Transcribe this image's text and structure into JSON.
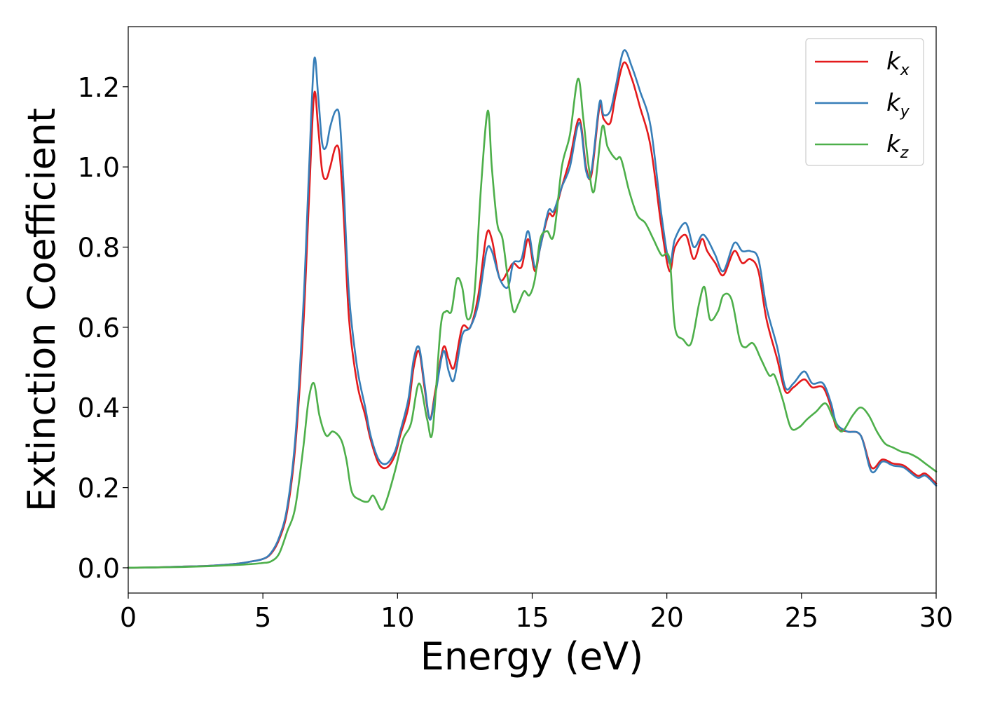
{
  "chart_data": {
    "type": "line",
    "xlabel": "Energy (eV)",
    "ylabel": "Extinction Coefficient",
    "xlim": [
      0,
      30
    ],
    "ylim": [
      -0.063,
      1.35
    ],
    "xticks": [
      0,
      5,
      10,
      15,
      20,
      25,
      30
    ],
    "xtick_labels": [
      "0",
      "5",
      "10",
      "15",
      "20",
      "25",
      "30"
    ],
    "yticks": [
      0.0,
      0.2,
      0.4,
      0.6,
      0.8,
      1.0,
      1.2
    ],
    "ytick_labels": [
      "0.0",
      "0.2",
      "0.4",
      "0.6",
      "0.8",
      "1.0",
      "1.2"
    ],
    "grid": false,
    "legend_position": "top-right",
    "series": [
      {
        "name": "k_x",
        "legend_base": "k",
        "legend_sub": "x",
        "color": "#e41a1c",
        "x": [
          0,
          1,
          2,
          3,
          4,
          4.5,
          5,
          5.3,
          5.6,
          5.9,
          6.2,
          6.5,
          6.7,
          6.9,
          7.05,
          7.2,
          7.35,
          7.5,
          7.7,
          7.85,
          8.0,
          8.2,
          8.5,
          8.8,
          9.0,
          9.3,
          9.6,
          9.9,
          10.1,
          10.4,
          10.6,
          10.8,
          11.0,
          11.2,
          11.4,
          11.7,
          11.9,
          12.1,
          12.4,
          12.7,
          13.0,
          13.3,
          13.5,
          13.8,
          14.1,
          14.3,
          14.6,
          14.85,
          15.1,
          15.3,
          15.6,
          15.8,
          16.1,
          16.4,
          16.75,
          17.0,
          17.2,
          17.5,
          17.65,
          17.9,
          18.1,
          18.4,
          18.7,
          19.0,
          19.4,
          19.8,
          20.1,
          20.3,
          20.7,
          21.0,
          21.3,
          21.5,
          21.8,
          22.1,
          22.5,
          22.8,
          23.1,
          23.4,
          23.7,
          24.1,
          24.4,
          24.7,
          25.1,
          25.4,
          25.8,
          26.1,
          26.3,
          26.7,
          27.2,
          27.6,
          28.0,
          28.4,
          28.8,
          29.3,
          29.6,
          30.0
        ],
        "y": [
          0.0,
          0.001,
          0.003,
          0.005,
          0.01,
          0.015,
          0.022,
          0.035,
          0.07,
          0.14,
          0.3,
          0.6,
          0.9,
          1.18,
          1.1,
          0.99,
          0.97,
          1.0,
          1.05,
          1.03,
          0.88,
          0.62,
          0.46,
          0.38,
          0.32,
          0.26,
          0.25,
          0.28,
          0.33,
          0.4,
          0.5,
          0.54,
          0.45,
          0.37,
          0.44,
          0.55,
          0.52,
          0.5,
          0.6,
          0.6,
          0.68,
          0.83,
          0.82,
          0.72,
          0.74,
          0.76,
          0.75,
          0.82,
          0.74,
          0.8,
          0.88,
          0.88,
          0.95,
          1.02,
          1.12,
          1.0,
          0.98,
          1.15,
          1.12,
          1.11,
          1.18,
          1.26,
          1.22,
          1.15,
          1.05,
          0.85,
          0.74,
          0.8,
          0.83,
          0.77,
          0.82,
          0.79,
          0.76,
          0.73,
          0.79,
          0.76,
          0.77,
          0.74,
          0.62,
          0.52,
          0.44,
          0.45,
          0.47,
          0.45,
          0.45,
          0.4,
          0.35,
          0.34,
          0.33,
          0.25,
          0.27,
          0.26,
          0.255,
          0.23,
          0.235,
          0.21
        ]
      },
      {
        "name": "k_y",
        "legend_base": "k",
        "legend_sub": "y",
        "color": "#377eb8",
        "x": [
          0,
          1,
          2,
          3,
          4,
          4.5,
          5,
          5.3,
          5.6,
          5.9,
          6.2,
          6.5,
          6.7,
          6.9,
          7.05,
          7.2,
          7.35,
          7.5,
          7.7,
          7.85,
          8.0,
          8.2,
          8.5,
          8.8,
          9.0,
          9.3,
          9.6,
          9.9,
          10.1,
          10.4,
          10.6,
          10.8,
          11.0,
          11.2,
          11.4,
          11.7,
          11.9,
          12.1,
          12.4,
          12.7,
          13.0,
          13.3,
          13.5,
          13.8,
          14.1,
          14.3,
          14.6,
          14.85,
          15.1,
          15.3,
          15.6,
          15.8,
          16.1,
          16.4,
          16.75,
          17.0,
          17.2,
          17.5,
          17.65,
          17.9,
          18.1,
          18.4,
          18.7,
          19.0,
          19.4,
          19.8,
          20.1,
          20.3,
          20.7,
          21.0,
          21.3,
          21.5,
          21.8,
          22.1,
          22.5,
          22.8,
          23.1,
          23.4,
          23.7,
          24.1,
          24.4,
          24.7,
          25.1,
          25.4,
          25.8,
          26.1,
          26.3,
          26.7,
          27.2,
          27.6,
          28.0,
          28.4,
          28.8,
          29.3,
          29.6,
          30.0
        ],
        "y": [
          0.0,
          0.001,
          0.003,
          0.005,
          0.01,
          0.015,
          0.022,
          0.037,
          0.075,
          0.15,
          0.32,
          0.65,
          0.97,
          1.265,
          1.18,
          1.06,
          1.05,
          1.1,
          1.14,
          1.12,
          0.95,
          0.68,
          0.5,
          0.4,
          0.33,
          0.27,
          0.26,
          0.29,
          0.34,
          0.42,
          0.52,
          0.55,
          0.46,
          0.37,
          0.43,
          0.54,
          0.49,
          0.47,
          0.58,
          0.6,
          0.66,
          0.79,
          0.79,
          0.72,
          0.7,
          0.76,
          0.77,
          0.84,
          0.75,
          0.8,
          0.89,
          0.89,
          0.95,
          1.0,
          1.11,
          0.99,
          0.99,
          1.16,
          1.13,
          1.14,
          1.2,
          1.29,
          1.25,
          1.19,
          1.1,
          0.88,
          0.76,
          0.82,
          0.86,
          0.8,
          0.83,
          0.82,
          0.78,
          0.74,
          0.81,
          0.79,
          0.79,
          0.77,
          0.65,
          0.55,
          0.45,
          0.46,
          0.49,
          0.46,
          0.46,
          0.41,
          0.36,
          0.34,
          0.33,
          0.24,
          0.265,
          0.255,
          0.25,
          0.225,
          0.23,
          0.205
        ]
      },
      {
        "name": "k_z",
        "legend_base": "k",
        "legend_sub": "z",
        "color": "#4daf4a",
        "x": [
          0,
          1,
          2,
          3,
          4,
          4.5,
          5,
          5.3,
          5.6,
          5.9,
          6.2,
          6.5,
          6.7,
          6.9,
          7.1,
          7.35,
          7.6,
          7.9,
          8.1,
          8.3,
          8.6,
          8.9,
          9.1,
          9.4,
          9.6,
          9.9,
          10.2,
          10.5,
          10.8,
          11.1,
          11.3,
          11.6,
          11.8,
          12.0,
          12.2,
          12.4,
          12.6,
          12.85,
          13.1,
          13.35,
          13.5,
          13.7,
          13.9,
          14.1,
          14.3,
          14.5,
          14.7,
          14.9,
          15.1,
          15.3,
          15.55,
          15.8,
          16.1,
          16.4,
          16.7,
          16.9,
          17.1,
          17.3,
          17.6,
          17.8,
          18.1,
          18.3,
          18.6,
          18.9,
          19.2,
          19.5,
          19.8,
          20.1,
          20.3,
          20.6,
          20.9,
          21.2,
          21.4,
          21.6,
          21.9,
          22.1,
          22.4,
          22.7,
          22.9,
          23.2,
          23.5,
          23.8,
          24.0,
          24.3,
          24.6,
          24.9,
          25.2,
          25.55,
          25.9,
          26.2,
          26.5,
          26.9,
          27.2,
          27.5,
          27.8,
          28.1,
          28.4,
          28.7,
          29.0,
          29.3,
          29.6,
          30.0
        ],
        "y": [
          0.0,
          0.001,
          0.002,
          0.004,
          0.007,
          0.009,
          0.012,
          0.016,
          0.035,
          0.09,
          0.15,
          0.3,
          0.42,
          0.46,
          0.38,
          0.33,
          0.34,
          0.32,
          0.27,
          0.19,
          0.17,
          0.165,
          0.18,
          0.145,
          0.17,
          0.24,
          0.32,
          0.36,
          0.46,
          0.37,
          0.34,
          0.6,
          0.64,
          0.64,
          0.72,
          0.7,
          0.62,
          0.68,
          0.95,
          1.14,
          1.0,
          0.86,
          0.82,
          0.72,
          0.64,
          0.66,
          0.69,
          0.68,
          0.72,
          0.82,
          0.84,
          0.83,
          1.0,
          1.08,
          1.22,
          1.12,
          1.0,
          0.94,
          1.1,
          1.05,
          1.02,
          1.02,
          0.94,
          0.88,
          0.86,
          0.82,
          0.78,
          0.77,
          0.6,
          0.57,
          0.56,
          0.66,
          0.7,
          0.62,
          0.64,
          0.68,
          0.67,
          0.57,
          0.55,
          0.56,
          0.52,
          0.48,
          0.48,
          0.42,
          0.35,
          0.35,
          0.37,
          0.39,
          0.41,
          0.37,
          0.34,
          0.38,
          0.4,
          0.38,
          0.34,
          0.31,
          0.3,
          0.29,
          0.285,
          0.275,
          0.26,
          0.24
        ]
      }
    ]
  }
}
